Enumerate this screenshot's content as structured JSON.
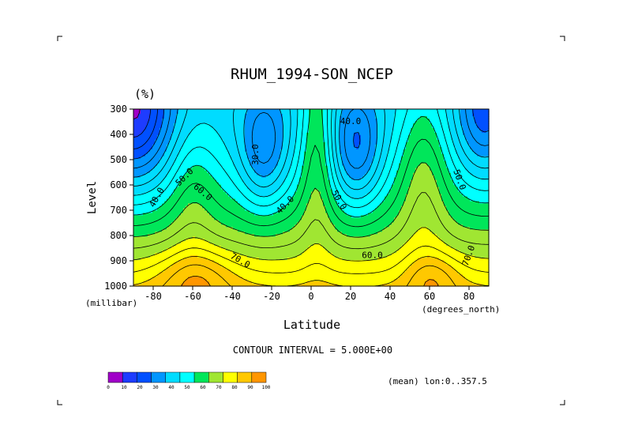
{
  "chart_data": {
    "type": "contour",
    "title": "RHUM_1994-SON_NCEP",
    "units": "(%)",
    "xlabel": "Latitude",
    "xunits": "(degrees_north)",
    "ylabel": "Level",
    "yunits": "(millibar)",
    "xlim": [
      -90,
      90
    ],
    "ylim": [
      1000,
      300
    ],
    "x_ticks": [
      "-80",
      "-60",
      "-40",
      "-20",
      "0",
      "20",
      "40",
      "60",
      "80"
    ],
    "y_ticks": [
      "300",
      "400",
      "500",
      "600",
      "700",
      "800",
      "900",
      "1000"
    ],
    "contour_interval_text": "CONTOUR INTERVAL = 5.000E+00",
    "mean_text": "(mean) lon:0..357.5",
    "contour_labels": [
      {
        "text": "30.0",
        "lat": -28,
        "lev": 480,
        "angle": -90
      },
      {
        "text": "40.0",
        "lat": 20,
        "lev": 350,
        "angle": 0
      },
      {
        "text": "40.0",
        "lat": -13,
        "lev": 680,
        "angle": -45
      },
      {
        "text": "40.0",
        "lat": -78,
        "lev": 650,
        "angle": -60
      },
      {
        "text": "50.0",
        "lat": -64,
        "lev": 570,
        "angle": -45
      },
      {
        "text": "50.0",
        "lat": 14,
        "lev": 660,
        "angle": 60
      },
      {
        "text": "50.0",
        "lat": 75,
        "lev": 580,
        "angle": 70
      },
      {
        "text": "60.0",
        "lat": -55,
        "lev": 630,
        "angle": 40
      },
      {
        "text": "60.0",
        "lat": 31,
        "lev": 880,
        "angle": 0
      },
      {
        "text": "70.0",
        "lat": -36,
        "lev": 900,
        "angle": 30
      },
      {
        "text": "70.0",
        "lat": 80,
        "lev": 880,
        "angle": -70
      }
    ],
    "colorbar": {
      "ticks": [
        "0",
        "10",
        "20",
        "30",
        "40",
        "50",
        "60",
        "70",
        "80",
        "90",
        "100"
      ],
      "colors": [
        "#a000c8",
        "#1e3cff",
        "#0050ff",
        "#0096ff",
        "#00dcff",
        "#00ffff",
        "#00e65a",
        "#a0e632",
        "#ffff00",
        "#ffc800",
        "#ff9600",
        "#ff0000"
      ]
    },
    "fields": {
      "shaded": true,
      "contour_interval": 5,
      "range": [
        5,
        95
      ]
    }
  }
}
